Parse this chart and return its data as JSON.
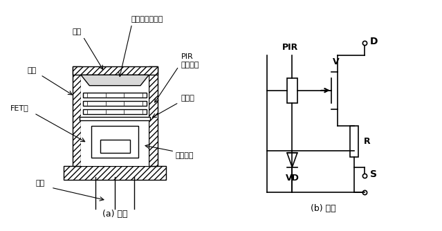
{
  "bg_color": "#ffffff",
  "line_color": "#000000",
  "label_a": "(a) 结构",
  "label_b": "(b) 内部",
  "text_window": "窗口",
  "text_fresnel": "菲涅尔滤光透镜",
  "text_shell": "外壳",
  "text_PIR_label": "PIR",
  "text_thermo": "热电元件",
  "text_FET": "FET管",
  "text_support": "支承环",
  "text_circuit": "电路元件",
  "text_lead": "引脚",
  "text_PIR_circuit": "PIR",
  "text_V": "V",
  "text_R": "R",
  "text_VD": "VD",
  "text_D": "D",
  "text_S": "S",
  "font_size_small": 7,
  "font_size_main": 8,
  "font_size_label": 9
}
